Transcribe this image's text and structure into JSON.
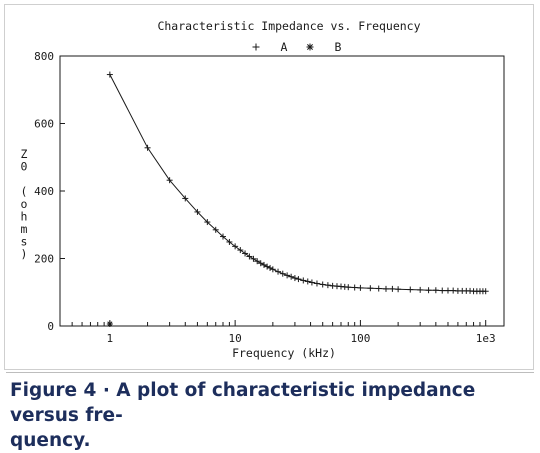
{
  "chart_data": {
    "type": "line",
    "title": "Characteristic Impedance vs. Frequency",
    "xlabel": "Frequency (kHz)",
    "ylabel": "Z0 (ohms)",
    "x_scale": "log",
    "xlim": [
      0.4,
      1400
    ],
    "ylim": [
      0,
      800
    ],
    "x_ticks": [
      {
        "value": 1,
        "label": "1"
      },
      {
        "value": 10,
        "label": "10"
      },
      {
        "value": 100,
        "label": "100"
      },
      {
        "value": 1000,
        "label": "1e3"
      }
    ],
    "y_ticks": [
      0,
      200,
      400,
      600,
      800
    ],
    "grid": false,
    "legend": [
      {
        "marker": "+",
        "name": "A"
      },
      {
        "marker": "*",
        "name": "B"
      }
    ],
    "legend_position": "top-center",
    "series": [
      {
        "name": "A",
        "marker": "+",
        "x": [
          1,
          2,
          3,
          4,
          5,
          6,
          7,
          8,
          9,
          10,
          11,
          12,
          13,
          14,
          15,
          16,
          17,
          18,
          19,
          20,
          22,
          24,
          26,
          28,
          30,
          32,
          35,
          38,
          41,
          45,
          50,
          55,
          60,
          65,
          70,
          75,
          80,
          90,
          100,
          120,
          140,
          160,
          180,
          200,
          250,
          300,
          350,
          400,
          450,
          500,
          550,
          600,
          650,
          700,
          750,
          800,
          850,
          900,
          950,
          1000
        ],
        "y": [
          745,
          528,
          432,
          378,
          338,
          308,
          285,
          265,
          249,
          236,
          225,
          215,
          206,
          199,
          192,
          186,
          181,
          176,
          172,
          168,
          161,
          155,
          150,
          146,
          142,
          139,
          135,
          132,
          129,
          126,
          123,
          121,
          119,
          118,
          117,
          116,
          115,
          114,
          113,
          112,
          111,
          110,
          110,
          109,
          108,
          107,
          106,
          106,
          105,
          105,
          105,
          104,
          104,
          104,
          104,
          103,
          103,
          103,
          103,
          103
        ]
      },
      {
        "name": "B",
        "marker": "*",
        "x": [
          1
        ],
        "y": [
          0
        ]
      }
    ]
  },
  "caption": {
    "line1": "Figure 4 · A plot of characteristic impedance versus fre-",
    "line2": "quency."
  },
  "colors": {
    "line": "#1a1a1a",
    "caption": "#1d2e5c",
    "frame": "#cfcfcf"
  }
}
